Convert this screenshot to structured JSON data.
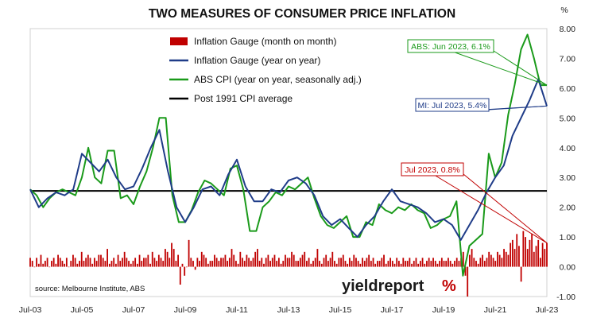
{
  "chart_data": {
    "type": "line",
    "title": "TWO MEASURES OF CONSUMER PRICE INFLATION",
    "ylabel": "%",
    "ylim": [
      -1.0,
      8.0
    ],
    "yticks": [
      "-1.00",
      "0.00",
      "1.00",
      "2.00",
      "3.00",
      "4.00",
      "5.00",
      "6.00",
      "7.00",
      "8.00"
    ],
    "xticks": [
      "Jul-03",
      "Jul-05",
      "Jul-07",
      "Jul-09",
      "Jul-11",
      "Jul-13",
      "Jul-15",
      "Jul-17",
      "Jul-19",
      "Jul-21",
      "Jul-23"
    ],
    "x_range": [
      "2003-07",
      "2023-07"
    ],
    "legend": {
      "placement": "top-center",
      "entries": [
        {
          "label": "Inflation Gauge (month on month)",
          "color": "#c00000",
          "kind": "bar"
        },
        {
          "label": "Inflation Gauge (year on year)",
          "color": "#1f3c88",
          "kind": "line"
        },
        {
          "label": "ABS CPI (year on year, seasonally adj.)",
          "color": "#1a9a1a",
          "kind": "line"
        },
        {
          "label": "Post 1991 CPI average",
          "color": "#000000",
          "kind": "line"
        }
      ]
    },
    "series": [
      {
        "name": "Inflation Gauge (year on year)",
        "type": "line",
        "color": "#1f3c88",
        "x": [
          "2003-07",
          "2003-11",
          "2004-03",
          "2004-07",
          "2004-11",
          "2005-03",
          "2005-07",
          "2005-11",
          "2006-03",
          "2006-07",
          "2006-11",
          "2007-03",
          "2007-07",
          "2007-11",
          "2008-03",
          "2008-07",
          "2008-11",
          "2009-03",
          "2009-07",
          "2009-11",
          "2010-03",
          "2010-07",
          "2010-11",
          "2011-03",
          "2011-07",
          "2011-11",
          "2012-03",
          "2012-07",
          "2012-11",
          "2013-03",
          "2013-07",
          "2013-11",
          "2014-03",
          "2014-07",
          "2014-11",
          "2015-03",
          "2015-07",
          "2015-11",
          "2016-03",
          "2016-07",
          "2016-11",
          "2017-03",
          "2017-07",
          "2017-11",
          "2018-03",
          "2018-07",
          "2018-11",
          "2019-03",
          "2019-07",
          "2019-11",
          "2020-03",
          "2020-07",
          "2020-11",
          "2021-03",
          "2021-07",
          "2021-11",
          "2022-03",
          "2022-07",
          "2022-11",
          "2023-03",
          "2023-07"
        ],
        "values": [
          2.6,
          2.0,
          2.3,
          2.5,
          2.4,
          2.6,
          3.8,
          3.5,
          3.2,
          3.6,
          3.0,
          2.6,
          2.7,
          3.3,
          4.0,
          4.6,
          3.2,
          2.0,
          1.5,
          2.0,
          2.6,
          2.7,
          2.4,
          3.1,
          3.6,
          2.7,
          2.2,
          2.2,
          2.6,
          2.5,
          2.9,
          3.0,
          2.8,
          2.4,
          1.7,
          1.4,
          1.6,
          1.3,
          1.0,
          1.4,
          1.7,
          2.2,
          2.6,
          2.2,
          2.1,
          2.0,
          1.8,
          1.5,
          1.6,
          1.4,
          0.9,
          1.4,
          1.9,
          2.5,
          3.0,
          3.4,
          4.4,
          5.0,
          5.6,
          6.3,
          5.4
        ]
      },
      {
        "name": "ABS CPI (year on year, seasonally adj.)",
        "type": "line",
        "color": "#1a9a1a",
        "x": [
          "2003-07",
          "2003-10",
          "2004-01",
          "2004-04",
          "2004-07",
          "2004-10",
          "2005-01",
          "2005-04",
          "2005-07",
          "2005-10",
          "2006-01",
          "2006-04",
          "2006-07",
          "2006-10",
          "2007-01",
          "2007-04",
          "2007-07",
          "2007-10",
          "2008-01",
          "2008-04",
          "2008-07",
          "2008-10",
          "2009-01",
          "2009-04",
          "2009-07",
          "2009-10",
          "2010-01",
          "2010-04",
          "2010-07",
          "2010-10",
          "2011-01",
          "2011-04",
          "2011-07",
          "2011-10",
          "2012-01",
          "2012-04",
          "2012-07",
          "2012-10",
          "2013-01",
          "2013-04",
          "2013-07",
          "2013-10",
          "2014-01",
          "2014-04",
          "2014-07",
          "2014-10",
          "2015-01",
          "2015-04",
          "2015-07",
          "2015-10",
          "2016-01",
          "2016-04",
          "2016-07",
          "2016-10",
          "2017-01",
          "2017-04",
          "2017-07",
          "2017-10",
          "2018-01",
          "2018-04",
          "2018-07",
          "2018-10",
          "2019-01",
          "2019-04",
          "2019-07",
          "2019-10",
          "2020-01",
          "2020-04",
          "2020-07",
          "2020-10",
          "2021-01",
          "2021-04",
          "2021-07",
          "2021-10",
          "2022-01",
          "2022-04",
          "2022-07",
          "2022-10",
          "2023-01",
          "2023-04",
          "2023-07"
        ],
        "values": [
          2.6,
          2.4,
          2.0,
          2.3,
          2.5,
          2.6,
          2.5,
          2.4,
          3.0,
          4.0,
          3.0,
          2.8,
          3.9,
          3.9,
          2.3,
          2.4,
          2.1,
          2.7,
          3.2,
          4.0,
          5.0,
          5.0,
          2.4,
          1.5,
          1.5,
          1.9,
          2.5,
          2.9,
          2.8,
          2.6,
          2.4,
          3.3,
          3.4,
          2.6,
          1.2,
          1.2,
          2.0,
          2.2,
          2.5,
          2.4,
          2.7,
          2.6,
          2.8,
          3.0,
          2.3,
          1.7,
          1.4,
          1.3,
          1.5,
          1.7,
          1.0,
          1.0,
          1.5,
          1.4,
          2.1,
          1.9,
          1.8,
          2.0,
          1.9,
          2.1,
          1.9,
          1.8,
          1.3,
          1.4,
          1.6,
          1.7,
          2.2,
          -0.3,
          0.7,
          0.9,
          1.1,
          3.8,
          3.0,
          3.5,
          5.1,
          6.1,
          7.3,
          7.8,
          7.0,
          6.1,
          6.1
        ]
      },
      {
        "name": "Post 1991 CPI average",
        "type": "line",
        "color": "#000000",
        "values": [
          2.55
        ]
      },
      {
        "name": "Inflation Gauge (month on month)",
        "type": "bar",
        "color": "#c00000",
        "x_range": [
          "2003-07",
          "2023-07"
        ],
        "values": [
          0.3,
          0.2,
          0.0,
          0.3,
          0.1,
          0.4,
          0.1,
          0.2,
          0.3,
          0.0,
          0.2,
          0.3,
          0.1,
          0.4,
          0.3,
          0.2,
          0.1,
          0.3,
          0.0,
          0.2,
          0.4,
          0.3,
          0.1,
          0.2,
          0.5,
          0.2,
          0.3,
          0.4,
          0.3,
          0.1,
          0.3,
          0.2,
          0.4,
          0.4,
          0.3,
          0.2,
          0.6,
          0.1,
          0.2,
          0.3,
          0.1,
          0.4,
          0.2,
          0.3,
          0.5,
          0.3,
          0.2,
          0.1,
          0.2,
          0.3,
          0.1,
          0.4,
          0.2,
          0.3,
          0.3,
          0.4,
          0.1,
          0.5,
          0.3,
          0.2,
          0.4,
          0.3,
          0.2,
          0.6,
          0.5,
          0.3,
          0.8,
          0.6,
          0.2,
          0.4,
          -0.6,
          0.1,
          -0.3,
          0.0,
          0.9,
          0.3,
          0.2,
          -0.1,
          0.3,
          0.2,
          0.5,
          0.4,
          0.3,
          0.1,
          0.2,
          0.2,
          0.4,
          0.3,
          0.2,
          0.3,
          0.3,
          0.4,
          0.2,
          0.3,
          0.6,
          0.4,
          0.2,
          0.1,
          0.5,
          0.3,
          0.2,
          0.4,
          0.3,
          0.2,
          0.3,
          0.5,
          0.6,
          0.2,
          0.3,
          0.1,
          0.3,
          0.4,
          0.2,
          0.3,
          0.4,
          0.2,
          0.3,
          0.1,
          0.2,
          0.4,
          0.3,
          0.3,
          0.5,
          0.4,
          0.2,
          0.2,
          0.3,
          0.4,
          0.5,
          0.2,
          0.3,
          0.1,
          0.2,
          0.3,
          0.6,
          0.2,
          0.1,
          0.3,
          0.4,
          0.2,
          0.3,
          0.5,
          0.2,
          0.1,
          0.3,
          0.3,
          0.4,
          0.2,
          0.1,
          0.3,
          0.2,
          0.4,
          0.3,
          0.2,
          0.1,
          0.3,
          0.2,
          0.3,
          0.4,
          0.2,
          0.3,
          0.1,
          0.2,
          0.2,
          0.3,
          0.4,
          0.1,
          0.2,
          0.3,
          0.2,
          0.1,
          0.3,
          0.2,
          0.1,
          0.3,
          0.2,
          0.2,
          0.3,
          0.1,
          0.2,
          0.3,
          0.1,
          0.2,
          0.3,
          0.1,
          0.2,
          0.3,
          0.2,
          0.3,
          0.2,
          0.1,
          0.2,
          0.3,
          0.2,
          0.2,
          0.3,
          0.2,
          0.1,
          0.2,
          0.3,
          0.2,
          0.3,
          0.5,
          -0.3,
          -1.0,
          0.4,
          0.6,
          0.3,
          0.2,
          0.1,
          0.3,
          0.4,
          0.2,
          0.3,
          0.5,
          0.4,
          0.3,
          0.2,
          0.5,
          0.4,
          0.3,
          0.6,
          0.5,
          0.4,
          0.8,
          0.9,
          0.6,
          1.1,
          0.7,
          -0.5,
          1.2,
          1.0,
          0.6,
          0.9,
          1.1,
          0.5,
          0.7,
          0.9,
          0.3,
          0.8,
          0.6,
          0.8
        ]
      }
    ],
    "annotations": [
      {
        "text": "ABS: Jun 2023, 6.1%",
        "color": "#1a9a1a",
        "target": {
          "x": "2023-07",
          "y": 6.1
        }
      },
      {
        "text": "MI: Jul 2023, 5.4%",
        "color": "#1f3c88",
        "target": {
          "x": "2023-07",
          "y": 5.4
        }
      },
      {
        "text": "Jul 2023, 0.8%",
        "color": "#c00000",
        "target": {
          "x": "2023-07",
          "y": 0.8
        }
      }
    ]
  },
  "source": "source: Melbourne Institute, ABS",
  "logo": {
    "text": "yieldreport",
    "symbol": "%"
  }
}
